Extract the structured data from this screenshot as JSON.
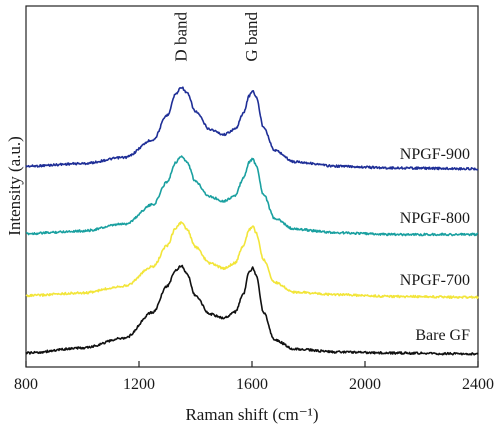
{
  "chart_data": {
    "type": "line",
    "xlabel": "Raman shift (cm⁻¹)",
    "ylabel": "Intensity (a.u.)",
    "xlim": [
      800,
      2400
    ],
    "x_ticks": [
      800,
      1200,
      1600,
      2000,
      2400
    ],
    "x_tick_labels": [
      "800",
      "1200",
      "1600",
      "2000",
      "2400"
    ],
    "y_ticks_shown": false,
    "grid": false,
    "legend": "none",
    "annotations": [
      {
        "text": "D band",
        "x": 1350
      },
      {
        "text": "G band",
        "x": 1600
      }
    ],
    "series": [
      {
        "name": "NPGF-900",
        "color": "#1f2f97",
        "points": [
          [
            800,
            0.1
          ],
          [
            1000,
            0.13
          ],
          [
            1150,
            0.2
          ],
          [
            1250,
            0.4
          ],
          [
            1300,
            0.68
          ],
          [
            1330,
            0.92
          ],
          [
            1350,
            1.0
          ],
          [
            1370,
            0.93
          ],
          [
            1400,
            0.72
          ],
          [
            1450,
            0.52
          ],
          [
            1500,
            0.46
          ],
          [
            1540,
            0.52
          ],
          [
            1570,
            0.7
          ],
          [
            1590,
            0.9
          ],
          [
            1603,
            0.96
          ],
          [
            1615,
            0.88
          ],
          [
            1640,
            0.55
          ],
          [
            1680,
            0.28
          ],
          [
            1750,
            0.15
          ],
          [
            1900,
            0.1
          ],
          [
            2100,
            0.08
          ],
          [
            2400,
            0.07
          ]
        ]
      },
      {
        "name": "NPGF-800",
        "color": "#1aa0a0",
        "points": [
          [
            800,
            0.05
          ],
          [
            1000,
            0.08
          ],
          [
            1150,
            0.16
          ],
          [
            1250,
            0.38
          ],
          [
            1300,
            0.64
          ],
          [
            1330,
            0.86
          ],
          [
            1350,
            0.93
          ],
          [
            1370,
            0.86
          ],
          [
            1400,
            0.64
          ],
          [
            1450,
            0.47
          ],
          [
            1500,
            0.42
          ],
          [
            1540,
            0.48
          ],
          [
            1570,
            0.68
          ],
          [
            1590,
            0.86
          ],
          [
            1603,
            0.9
          ],
          [
            1615,
            0.82
          ],
          [
            1640,
            0.5
          ],
          [
            1680,
            0.22
          ],
          [
            1750,
            0.1
          ],
          [
            1900,
            0.06
          ],
          [
            2100,
            0.04
          ],
          [
            2400,
            0.04
          ]
        ]
      },
      {
        "name": "NPGF-700",
        "color": "#f2e53a",
        "points": [
          [
            800,
            0.05
          ],
          [
            1000,
            0.08
          ],
          [
            1150,
            0.16
          ],
          [
            1250,
            0.38
          ],
          [
            1300,
            0.62
          ],
          [
            1330,
            0.82
          ],
          [
            1350,
            0.88
          ],
          [
            1370,
            0.8
          ],
          [
            1400,
            0.6
          ],
          [
            1450,
            0.42
          ],
          [
            1500,
            0.36
          ],
          [
            1540,
            0.42
          ],
          [
            1570,
            0.62
          ],
          [
            1590,
            0.8
          ],
          [
            1603,
            0.84
          ],
          [
            1615,
            0.76
          ],
          [
            1640,
            0.46
          ],
          [
            1680,
            0.2
          ],
          [
            1750,
            0.09
          ],
          [
            1900,
            0.06
          ],
          [
            2100,
            0.04
          ],
          [
            2400,
            0.03
          ]
        ]
      },
      {
        "name": "Bare GF",
        "color": "#111111",
        "points": [
          [
            800,
            0.03
          ],
          [
            1000,
            0.08
          ],
          [
            1150,
            0.18
          ],
          [
            1250,
            0.44
          ],
          [
            1300,
            0.7
          ],
          [
            1330,
            0.86
          ],
          [
            1350,
            0.9
          ],
          [
            1370,
            0.82
          ],
          [
            1400,
            0.6
          ],
          [
            1450,
            0.42
          ],
          [
            1500,
            0.38
          ],
          [
            1540,
            0.44
          ],
          [
            1570,
            0.62
          ],
          [
            1590,
            0.84
          ],
          [
            1603,
            0.88
          ],
          [
            1615,
            0.8
          ],
          [
            1640,
            0.44
          ],
          [
            1680,
            0.16
          ],
          [
            1750,
            0.07
          ],
          [
            1900,
            0.04
          ],
          [
            2100,
            0.03
          ],
          [
            2400,
            0.02
          ]
        ]
      }
    ]
  }
}
